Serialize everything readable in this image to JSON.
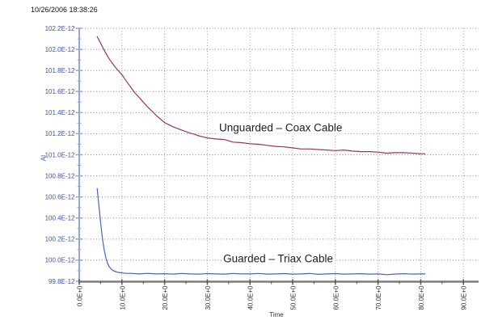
{
  "window": {
    "timestamp": "10/26/2006 18:38:26"
  },
  "chart_data": {
    "type": "line",
    "title": "",
    "xlabel": "Time",
    "ylabel": "AI",
    "grid": true,
    "legend_position": "none",
    "y_values_unit": "E-12 (values below are multiples of 1E-12)",
    "xlim": [
      0,
      92.8
    ],
    "ylim": [
      99.8,
      102.2
    ],
    "x_ticks": [
      {
        "value": 0,
        "label": "0.0E+0"
      },
      {
        "value": 10,
        "label": "10.0E+0"
      },
      {
        "value": 20,
        "label": "20.0E+0"
      },
      {
        "value": 30,
        "label": "30.0E+0"
      },
      {
        "value": 40,
        "label": "40.0E+0"
      },
      {
        "value": 50,
        "label": "50.0E+0"
      },
      {
        "value": 60,
        "label": "60.0E+0"
      },
      {
        "value": 70,
        "label": "70.0E+0"
      },
      {
        "value": 80,
        "label": "80.0E+0"
      },
      {
        "value": 90,
        "label": "90.0E+0"
      }
    ],
    "x_minor_ticks": [
      5,
      15,
      25,
      35,
      45,
      55,
      65,
      75,
      85
    ],
    "y_ticks": [
      {
        "value": 102.2,
        "label": "102.2E-12"
      },
      {
        "value": 102.0,
        "label": "102.0E-12"
      },
      {
        "value": 101.8,
        "label": "101.8E-12"
      },
      {
        "value": 101.6,
        "label": "101.6E-12"
      },
      {
        "value": 101.4,
        "label": "101.4E-12"
      },
      {
        "value": 101.2,
        "label": "101.2E-12"
      },
      {
        "value": 101.0,
        "label": "101.0E-12"
      },
      {
        "value": 100.8,
        "label": "100.8E-12"
      },
      {
        "value": 100.6,
        "label": "100.6E-12"
      },
      {
        "value": 100.4,
        "label": "100.4E-12"
      },
      {
        "value": 100.2,
        "label": "100.2E-12"
      },
      {
        "value": 100.0,
        "label": "100.0E-12"
      },
      {
        "value": 99.8,
        "label": "99.8E-12"
      }
    ],
    "y_minor_ticks": [
      102.1,
      101.9,
      101.7,
      101.5,
      101.3,
      101.1,
      100.9,
      100.7,
      100.5,
      100.3,
      100.1,
      99.9
    ],
    "colors": {
      "unguarded_curve": "#993366",
      "guarded_curve": "#4767b2",
      "y_axis": "#97a6d9",
      "y_labels": "#44519e",
      "x_axis": "#7d7d7d",
      "x_labels": "#333333",
      "grid": "#8a8a8a"
    },
    "series": [
      {
        "name": "Unguarded - Coax Cable",
        "color": "#993366",
        "points": [
          [
            4.2,
            102.12
          ],
          [
            5,
            102.06
          ],
          [
            6,
            101.98
          ],
          [
            7,
            101.91
          ],
          [
            8,
            101.855
          ],
          [
            9,
            101.805
          ],
          [
            10,
            101.76
          ],
          [
            11,
            101.7
          ],
          [
            12,
            101.645
          ],
          [
            13,
            101.59
          ],
          [
            14,
            101.545
          ],
          [
            15,
            101.5
          ],
          [
            16,
            101.455
          ],
          [
            17,
            101.415
          ],
          [
            18,
            101.375
          ],
          [
            19,
            101.34
          ],
          [
            20,
            101.305
          ],
          [
            21,
            101.285
          ],
          [
            22,
            101.265
          ],
          [
            23,
            101.25
          ],
          [
            24,
            101.235
          ],
          [
            25,
            101.22
          ],
          [
            26,
            101.205
          ],
          [
            27,
            101.195
          ],
          [
            28,
            101.18
          ],
          [
            29,
            101.17
          ],
          [
            30,
            101.16
          ],
          [
            32,
            101.15
          ],
          [
            34,
            101.145
          ],
          [
            36,
            101.12
          ],
          [
            38,
            101.115
          ],
          [
            40,
            101.105
          ],
          [
            42,
            101.1
          ],
          [
            44,
            101.09
          ],
          [
            46,
            101.08
          ],
          [
            48,
            101.075
          ],
          [
            50,
            101.065
          ],
          [
            52,
            101.055
          ],
          [
            54,
            101.055
          ],
          [
            56,
            101.05
          ],
          [
            58,
            101.045
          ],
          [
            60,
            101.04
          ],
          [
            62,
            101.045
          ],
          [
            64,
            101.035
          ],
          [
            66,
            101.03
          ],
          [
            68,
            101.03
          ],
          [
            70,
            101.025
          ],
          [
            72,
            101.015
          ],
          [
            74,
            101.02
          ],
          [
            76,
            101.02
          ],
          [
            78,
            101.015
          ],
          [
            80,
            101.01
          ],
          [
            81,
            101.01
          ]
        ]
      },
      {
        "name": "Guarded - Triax Cable",
        "color": "#4767b2",
        "points": [
          [
            4.2,
            100.68
          ],
          [
            4.6,
            100.52
          ],
          [
            5,
            100.36
          ],
          [
            5.4,
            100.22
          ],
          [
            5.8,
            100.11
          ],
          [
            6.2,
            100.03
          ],
          [
            6.6,
            99.975
          ],
          [
            7,
            99.94
          ],
          [
            7.5,
            99.915
          ],
          [
            8,
            99.9
          ],
          [
            9,
            99.885
          ],
          [
            10,
            99.88
          ],
          [
            11,
            99.875
          ],
          [
            12,
            99.875
          ],
          [
            14,
            99.87
          ],
          [
            16,
            99.875
          ],
          [
            18,
            99.87
          ],
          [
            20,
            99.872
          ],
          [
            22,
            99.868
          ],
          [
            24,
            99.874
          ],
          [
            26,
            99.87
          ],
          [
            28,
            99.868
          ],
          [
            30,
            99.873
          ],
          [
            32,
            99.87
          ],
          [
            34,
            99.868
          ],
          [
            36,
            99.874
          ],
          [
            38,
            99.87
          ],
          [
            40,
            99.87
          ],
          [
            42,
            99.874
          ],
          [
            44,
            99.868
          ],
          [
            46,
            99.87
          ],
          [
            48,
            99.873
          ],
          [
            50,
            99.868
          ],
          [
            52,
            99.87
          ],
          [
            54,
            99.874
          ],
          [
            56,
            99.866
          ],
          [
            58,
            99.87
          ],
          [
            60,
            99.873
          ],
          [
            62,
            99.868
          ],
          [
            64,
            99.87
          ],
          [
            66,
            99.872
          ],
          [
            68,
            99.868
          ],
          [
            70,
            99.87
          ],
          [
            72,
            99.863
          ],
          [
            74,
            99.868
          ],
          [
            76,
            99.872
          ],
          [
            78,
            99.868
          ],
          [
            80,
            99.87
          ],
          [
            81,
            99.87
          ]
        ]
      }
    ],
    "annotations": [
      {
        "text": "Unguarded – Coax Cable",
        "x": 47.2,
        "y": 101.26
      },
      {
        "text": "Guarded – Triax Cable",
        "x": 46.6,
        "y": 100.015
      }
    ]
  }
}
